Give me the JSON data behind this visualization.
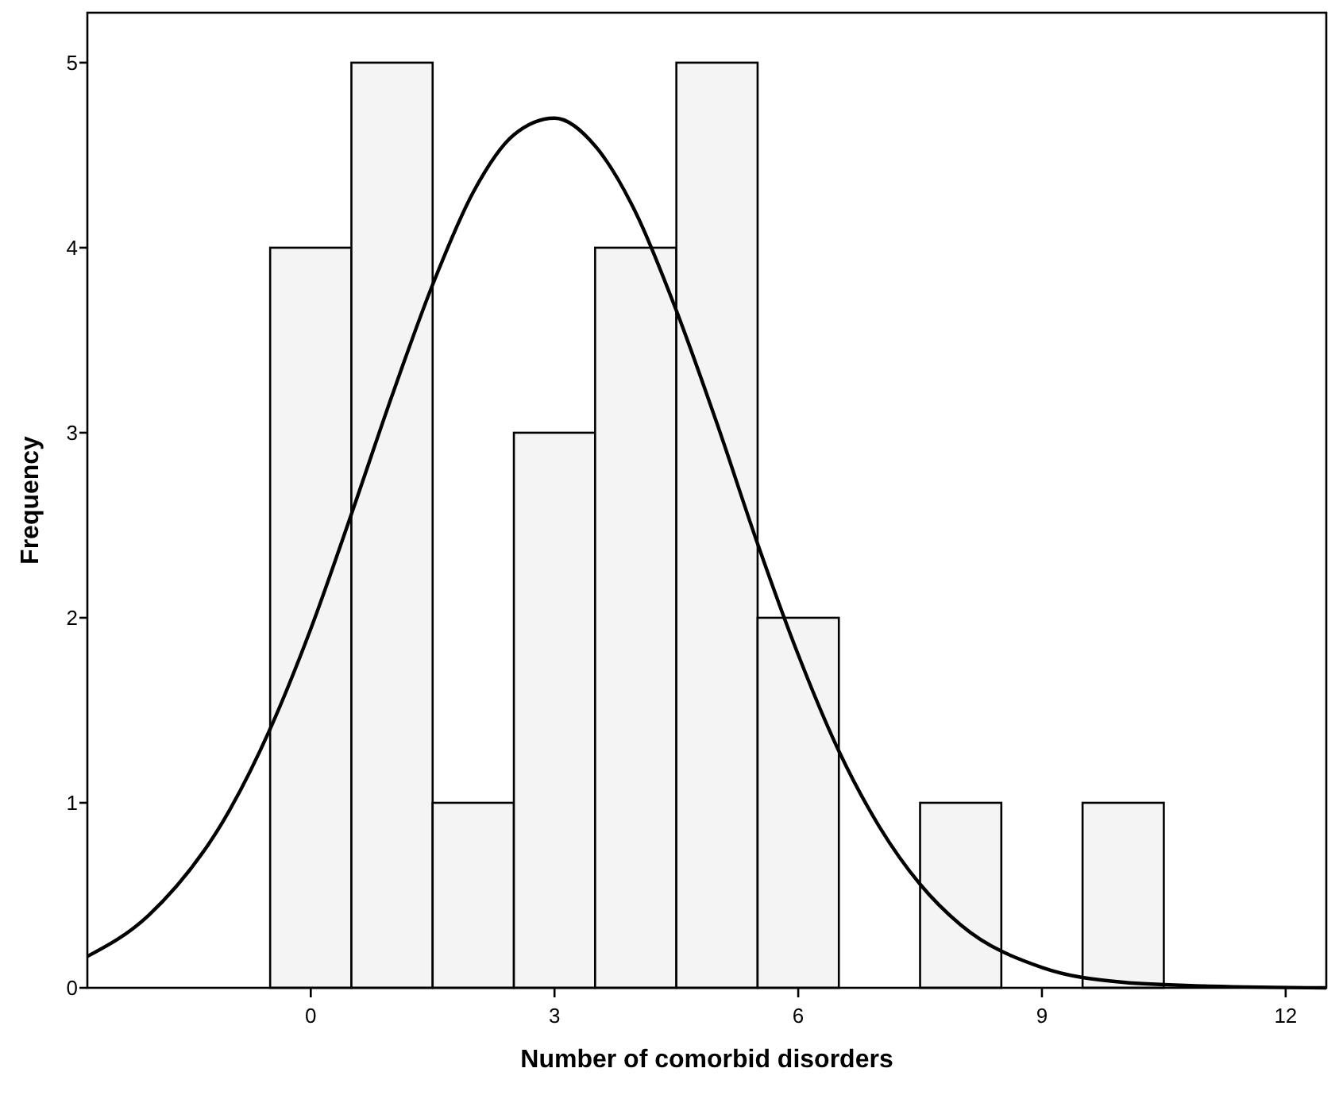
{
  "chart_data": {
    "type": "histogram",
    "xlabel": "Number of comorbid disorders",
    "ylabel": "Frequency",
    "bins": [
      -0.5,
      0.5,
      1.5,
      2.5,
      3.5,
      4.5,
      5.5,
      6.5,
      7.5,
      8.5,
      9.5,
      10.5
    ],
    "series": [
      {
        "color": "#f4f4f4",
        "values": [
          4,
          5,
          1,
          3,
          4,
          5,
          2,
          0,
          1,
          0,
          1
        ]
      },
      {
        "type": "line",
        "color": "#000000",
        "x": [
          -2.75,
          -2,
          -1,
          -0.5,
          0,
          0.5,
          1,
          1.5,
          2,
          2.5,
          3,
          3.5,
          4,
          4.5,
          5,
          5.5,
          6,
          6.5,
          7,
          7.5,
          8,
          9,
          10,
          11,
          12.5
        ],
        "values": [
          0.17,
          0.39,
          0.96,
          1.4,
          1.94,
          2.56,
          3.2,
          3.8,
          4.3,
          4.61,
          4.7,
          4.55,
          4.19,
          3.66,
          3.05,
          2.4,
          1.8,
          1.28,
          0.87,
          0.56,
          0.34,
          0.11,
          0.03,
          0.01,
          0
        ]
      }
    ],
    "xlim": [
      -2.75,
      12.5
    ],
    "ylim": [
      0,
      5.27
    ],
    "xticks": [
      0,
      3,
      6,
      9,
      12
    ],
    "yticks": [
      0,
      1,
      2,
      3,
      4,
      5
    ],
    "grid": false,
    "marker": "none",
    "line_style": "solid"
  }
}
